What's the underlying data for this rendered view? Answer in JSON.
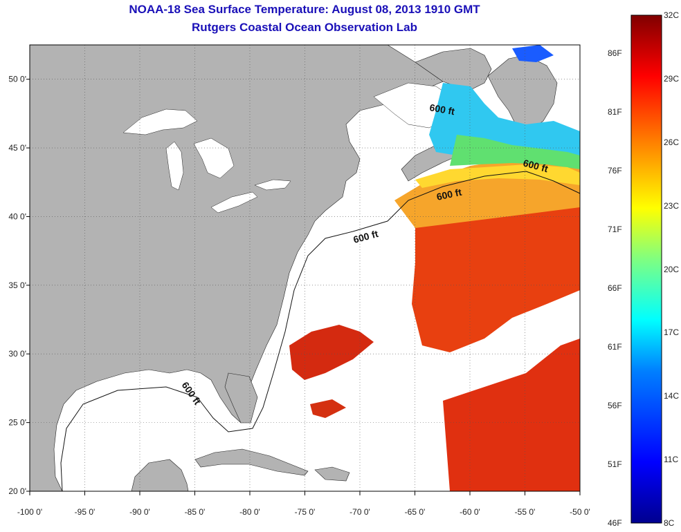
{
  "title": "NOAA-18 Sea Surface Temperature:  August 08, 2013 1910 GMT",
  "subtitle": "Rutgers Coastal Ocean Observation Lab",
  "map": {
    "lon_range": [
      -100,
      -50
    ],
    "lat_range": [
      20,
      52.5
    ],
    "x_ticks": [
      "-100 0'",
      "-95 0'",
      "-90 0'",
      "-85 0'",
      "-80 0'",
      "-75 0'",
      "-70 0'",
      "-65 0'",
      "-60 0'",
      "-55 0'",
      "-50 0'"
    ],
    "y_ticks": [
      "50 0'",
      "45 0'",
      "40 0'",
      "35 0'",
      "30 0'",
      "25 0'",
      "20 0'"
    ],
    "x_tick_values": [
      -100,
      -95,
      -90,
      -85,
      -80,
      -75,
      -70,
      -65,
      -60,
      -55,
      -50
    ],
    "y_tick_values": [
      50,
      45,
      40,
      35,
      30,
      25,
      20
    ],
    "grid": "dotted",
    "land_color": "#b3b3b3",
    "no_data_color": "#ffffff",
    "contour_labels": [
      "600 ft",
      "600 ft",
      "600 ft",
      "600 ft",
      "600 ft"
    ]
  },
  "colorbar": {
    "celsius_labels": [
      "32C",
      "29C",
      "26C",
      "23C",
      "20C",
      "17C",
      "14C",
      "11C",
      "8C"
    ],
    "fahrenheit_labels": [
      "86F",
      "81F",
      "76F",
      "71F",
      "66F",
      "61F",
      "56F",
      "51F",
      "46F"
    ],
    "range_c": [
      8,
      32
    ],
    "colors": [
      "#00008f",
      "#0000ff",
      "#0080ff",
      "#00ffff",
      "#80ff80",
      "#ffff00",
      "#ff8000",
      "#ff0000",
      "#800000"
    ]
  }
}
